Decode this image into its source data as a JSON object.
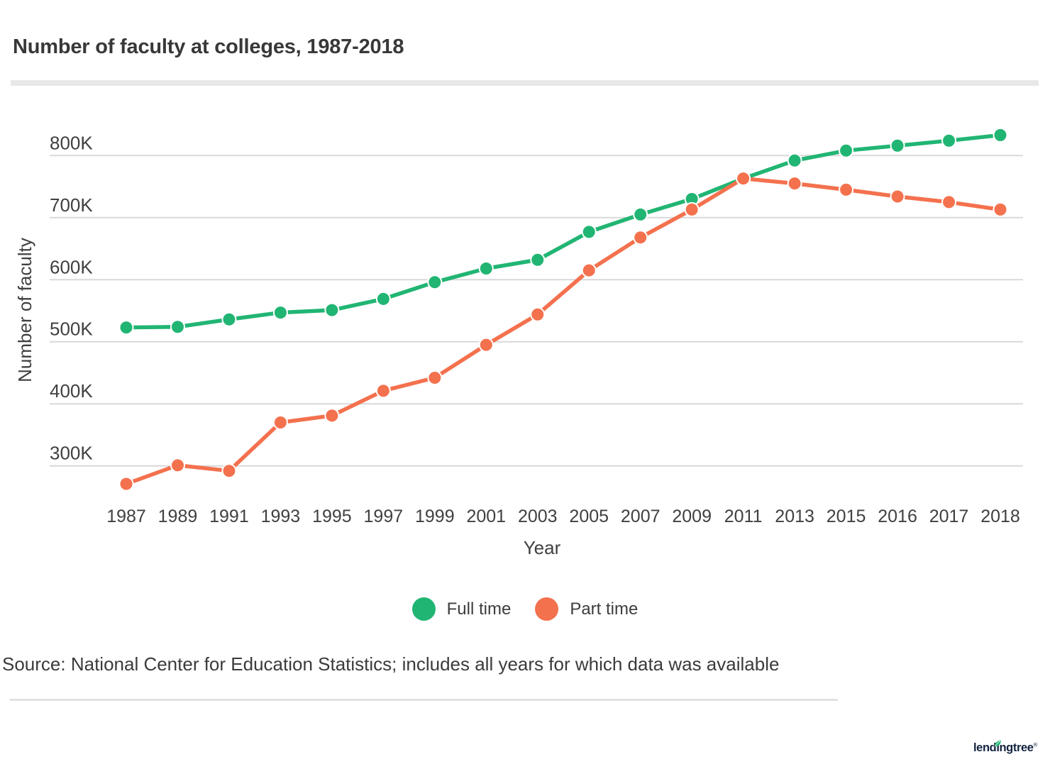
{
  "chart_data": {
    "type": "line",
    "title": "Number of faculty at colleges, 1987-2018",
    "x": [
      "1987",
      "1989",
      "1991",
      "1993",
      "1995",
      "1997",
      "1999",
      "2001",
      "2003",
      "2005",
      "2007",
      "2009",
      "2011",
      "2013",
      "2015",
      "2016",
      "2017",
      "2018"
    ],
    "unit": "thousands of faculty (K)",
    "series": [
      {
        "name": "Full time",
        "color": "#21b573",
        "values": [
          523,
          524,
          536,
          547,
          551,
          569,
          596,
          618,
          632,
          677,
          705,
          730,
          763,
          792,
          808,
          816,
          824,
          833
        ]
      },
      {
        "name": "Part time",
        "color": "#f4714e",
        "values": [
          271,
          301,
          292,
          370,
          381,
          421,
          442,
          495,
          544,
          615,
          668,
          713,
          763,
          755,
          745,
          734,
          725,
          713
        ]
      }
    ],
    "xlabel": "Year",
    "ylabel": "Number of faculty",
    "yticks": [
      800,
      700,
      600,
      500,
      400,
      300
    ],
    "ytick_labels": [
      "800K",
      "700K",
      "600K",
      "500K",
      "400K",
      "300K"
    ],
    "ylim": [
      250,
      860
    ],
    "grid": "horizontal",
    "grid_color": "#d9d9d9",
    "tick_color": "#404040",
    "legend_position": "bottom"
  },
  "source": {
    "text": "Source: National Center for Education Statistics; includes all years for which data was available"
  },
  "footer": {
    "logo_text": "lendingtree",
    "trademark": "®",
    "logo_color": "#12233f",
    "leaf_color": "#21b573"
  }
}
